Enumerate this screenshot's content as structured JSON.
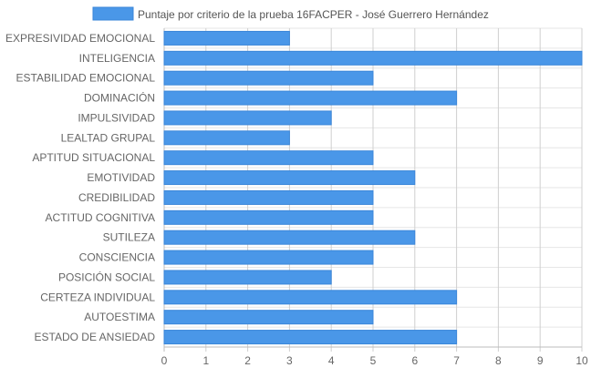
{
  "chart_data": {
    "type": "bar",
    "orientation": "horizontal",
    "series": [
      {
        "name": "Puntaje por criterio de la prueba 16FACPER - José Guerrero Hernández",
        "color": "#4a97e8",
        "border_color": "#3a86d9",
        "values": [
          3,
          10,
          5,
          7,
          4,
          3,
          5,
          6,
          5,
          5,
          6,
          5,
          4,
          7,
          5,
          7
        ]
      }
    ],
    "categories": [
      "EXPRESIVIDAD EMOCIONAL",
      "INTELIGENCIA",
      "ESTABILIDAD EMOCIONAL",
      "DOMINACIÓN",
      "IMPULSIVIDAD",
      "LEALTAD GRUPAL",
      "APTITUD SITUACIONAL",
      "EMOTIVIDAD",
      "CREDIBILIDAD",
      "ACTITUD COGNITIVA",
      "SUTILEZA",
      "CONSCIENCIA",
      "POSICIÓN SOCIAL",
      "CERTEZA INDIVIDUAL",
      "AUTOESTIMA",
      "ESTADO DE ANSIEDAD"
    ],
    "xlim": [
      0,
      10
    ],
    "x_ticks": [
      "0",
      "1",
      "2",
      "3",
      "4",
      "5",
      "6",
      "7",
      "8",
      "9",
      "10"
    ],
    "grid": true,
    "legend_position": "top"
  }
}
